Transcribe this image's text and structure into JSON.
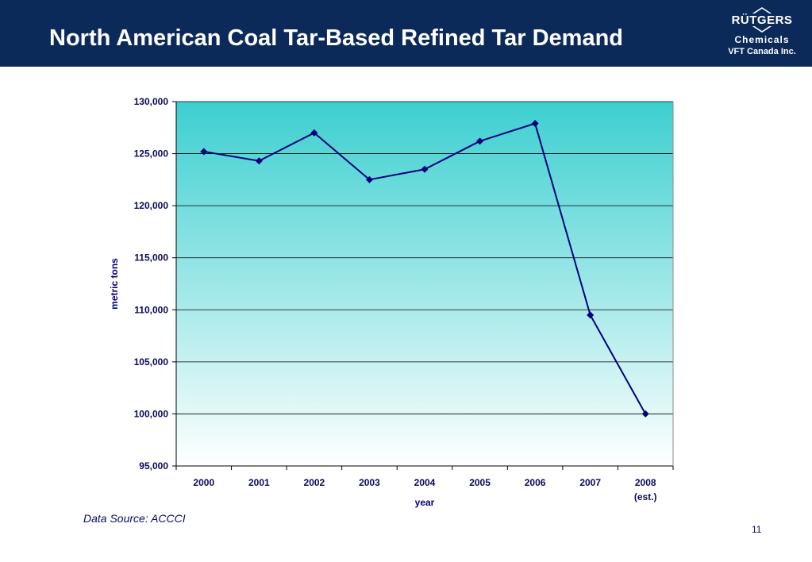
{
  "header": {
    "title": "North American Coal Tar-Based Refined Tar Demand",
    "logo_name": "RÜTGERS",
    "logo_division": "Chemicals",
    "logo_company": "VFT Canada Inc.",
    "background_color": "#0b2a5a"
  },
  "chart_data": {
    "type": "line",
    "title": "",
    "xlabel": "year",
    "ylabel": "metric tons",
    "categories": [
      "2000",
      "2001",
      "2002",
      "2003",
      "2004",
      "2005",
      "2006",
      "2007",
      "2008"
    ],
    "category_sublabels": [
      "",
      "",
      "",
      "",
      "",
      "",
      "",
      "",
      "(est.)"
    ],
    "series": [
      {
        "values": [
          125200,
          124300,
          127000,
          122500,
          123500,
          126200,
          127900,
          109500,
          100000
        ]
      }
    ],
    "ylim": [
      95000,
      130000
    ],
    "yticks": [
      "95,000",
      "100,000",
      "105,000",
      "110,000",
      "115,000",
      "120,000",
      "125,000",
      "130,000"
    ],
    "grid": true,
    "line_color": "#00007a",
    "plot_gradient_top": "#3ccfd0",
    "plot_gradient_bottom": "#ffffff"
  },
  "footer": {
    "source": "Data Source: ACCCI",
    "page_number": "11"
  }
}
